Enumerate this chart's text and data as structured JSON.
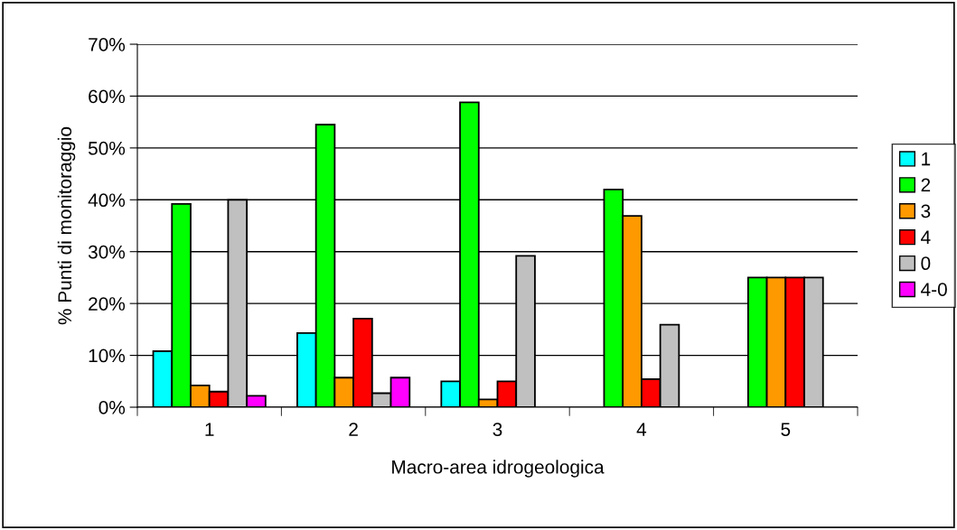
{
  "chart_data": {
    "type": "bar",
    "xlabel": "Macro-area idrogeologica",
    "ylabel": "% Punti di monitoraggio",
    "categories": [
      "1",
      "2",
      "3",
      "4",
      "5"
    ],
    "series": [
      {
        "name": "1",
        "color": "#00ffff",
        "values": [
          10.8,
          14.3,
          5.0,
          null,
          null
        ]
      },
      {
        "name": "2",
        "color": "#00ff00",
        "values": [
          39.2,
          54.5,
          58.8,
          42.0,
          25.0
        ]
      },
      {
        "name": "3",
        "color": "#ff9900",
        "values": [
          4.2,
          5.7,
          1.5,
          36.9,
          25.0
        ]
      },
      {
        "name": "4",
        "color": "#ff0000",
        "values": [
          3.0,
          17.1,
          5.0,
          5.4,
          25.0
        ]
      },
      {
        "name": "0",
        "color": "#c0c0c0",
        "values": [
          40.0,
          2.7,
          29.2,
          15.9,
          25.0
        ]
      },
      {
        "name": "4-0",
        "color": "#ff00ff",
        "values": [
          2.2,
          5.7,
          null,
          null,
          null
        ]
      }
    ],
    "ylim": [
      0,
      70
    ],
    "yticks": [
      {
        "value": 0,
        "label": "0%"
      },
      {
        "value": 10,
        "label": "10%"
      },
      {
        "value": 20,
        "label": "20%"
      },
      {
        "value": 30,
        "label": "30%"
      },
      {
        "value": 40,
        "label": "40%"
      },
      {
        "value": 50,
        "label": "50%"
      },
      {
        "value": 60,
        "label": "60%"
      },
      {
        "value": 70,
        "label": "70%"
      }
    ],
    "grid": "y",
    "legend": "right"
  }
}
